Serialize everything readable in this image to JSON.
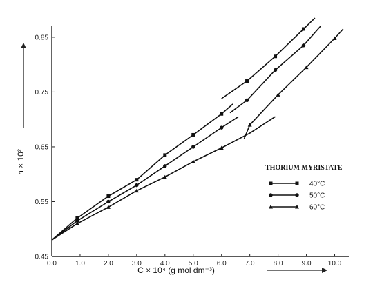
{
  "chart_data": {
    "type": "line",
    "xlabel": "C × 10⁴ (g mol dm⁻³)",
    "ylabel": "h × 10²",
    "xlim": [
      0,
      10.5
    ],
    "ylim": [
      0.45,
      0.87
    ],
    "x_ticks": [
      "0.0",
      "1.0",
      "2.0",
      "3.0",
      "4.0",
      "5.0",
      "6.0",
      "7.0",
      "8.0",
      "9.0",
      "10.0"
    ],
    "y_ticks": [
      "0.45",
      "0.55",
      "0.65",
      "0.75",
      "0.85"
    ],
    "legend_title": "THORIUM MYRISTATE",
    "legend_position": "right",
    "grid": false,
    "series": [
      {
        "name": "40°C",
        "marker": "square",
        "segments": [
          [
            [
              0,
              0.48
            ],
            [
              0.9,
              0.52
            ],
            [
              2.0,
              0.56
            ],
            [
              3.0,
              0.59
            ],
            [
              4.0,
              0.635
            ],
            [
              5.0,
              0.672
            ],
            [
              6.0,
              0.71
            ],
            [
              6.4,
              0.728
            ]
          ],
          [
            [
              6.0,
              0.738
            ],
            [
              6.9,
              0.77
            ],
            [
              7.9,
              0.815
            ],
            [
              8.9,
              0.865
            ],
            [
              9.3,
              0.885
            ]
          ]
        ],
        "points": [
          [
            0.9,
            0.52
          ],
          [
            2.0,
            0.56
          ],
          [
            3.0,
            0.59
          ],
          [
            4.0,
            0.635
          ],
          [
            5.0,
            0.672
          ],
          [
            6.0,
            0.71
          ],
          [
            6.9,
            0.77
          ],
          [
            7.9,
            0.815
          ],
          [
            8.9,
            0.865
          ]
        ]
      },
      {
        "name": "50°C",
        "marker": "circle",
        "segments": [
          [
            [
              0,
              0.48
            ],
            [
              0.9,
              0.515
            ],
            [
              2.0,
              0.55
            ],
            [
              3.0,
              0.58
            ],
            [
              4.0,
              0.615
            ],
            [
              5.0,
              0.65
            ],
            [
              6.0,
              0.685
            ],
            [
              6.6,
              0.705
            ]
          ],
          [
            [
              6.3,
              0.712
            ],
            [
              6.9,
              0.735
            ],
            [
              7.9,
              0.79
            ],
            [
              8.9,
              0.835
            ],
            [
              9.5,
              0.87
            ]
          ]
        ],
        "points": [
          [
            0.9,
            0.515
          ],
          [
            2.0,
            0.55
          ],
          [
            3.0,
            0.58
          ],
          [
            4.0,
            0.615
          ],
          [
            5.0,
            0.65
          ],
          [
            6.0,
            0.685
          ],
          [
            6.9,
            0.735
          ],
          [
            7.9,
            0.79
          ],
          [
            8.9,
            0.835
          ]
        ]
      },
      {
        "name": "60°C",
        "marker": "triangle",
        "segments": [
          [
            [
              0,
              0.48
            ],
            [
              0.9,
              0.51
            ],
            [
              2.0,
              0.54
            ],
            [
              3.0,
              0.57
            ],
            [
              4.0,
              0.595
            ],
            [
              5.0,
              0.623
            ],
            [
              6.0,
              0.648
            ],
            [
              7.0,
              0.675
            ],
            [
              7.9,
              0.705
            ]
          ],
          [
            [
              6.8,
              0.665
            ],
            [
              7.0,
              0.69
            ],
            [
              8.0,
              0.745
            ],
            [
              9.0,
              0.795
            ],
            [
              10.0,
              0.848
            ],
            [
              10.3,
              0.865
            ]
          ]
        ],
        "points": [
          [
            0.9,
            0.51
          ],
          [
            2.0,
            0.54
          ],
          [
            3.0,
            0.57
          ],
          [
            4.0,
            0.595
          ],
          [
            5.0,
            0.623
          ],
          [
            6.0,
            0.648
          ],
          [
            7.0,
            0.69
          ],
          [
            8.0,
            0.745
          ],
          [
            9.0,
            0.795
          ],
          [
            10.0,
            0.848
          ]
        ]
      }
    ]
  }
}
